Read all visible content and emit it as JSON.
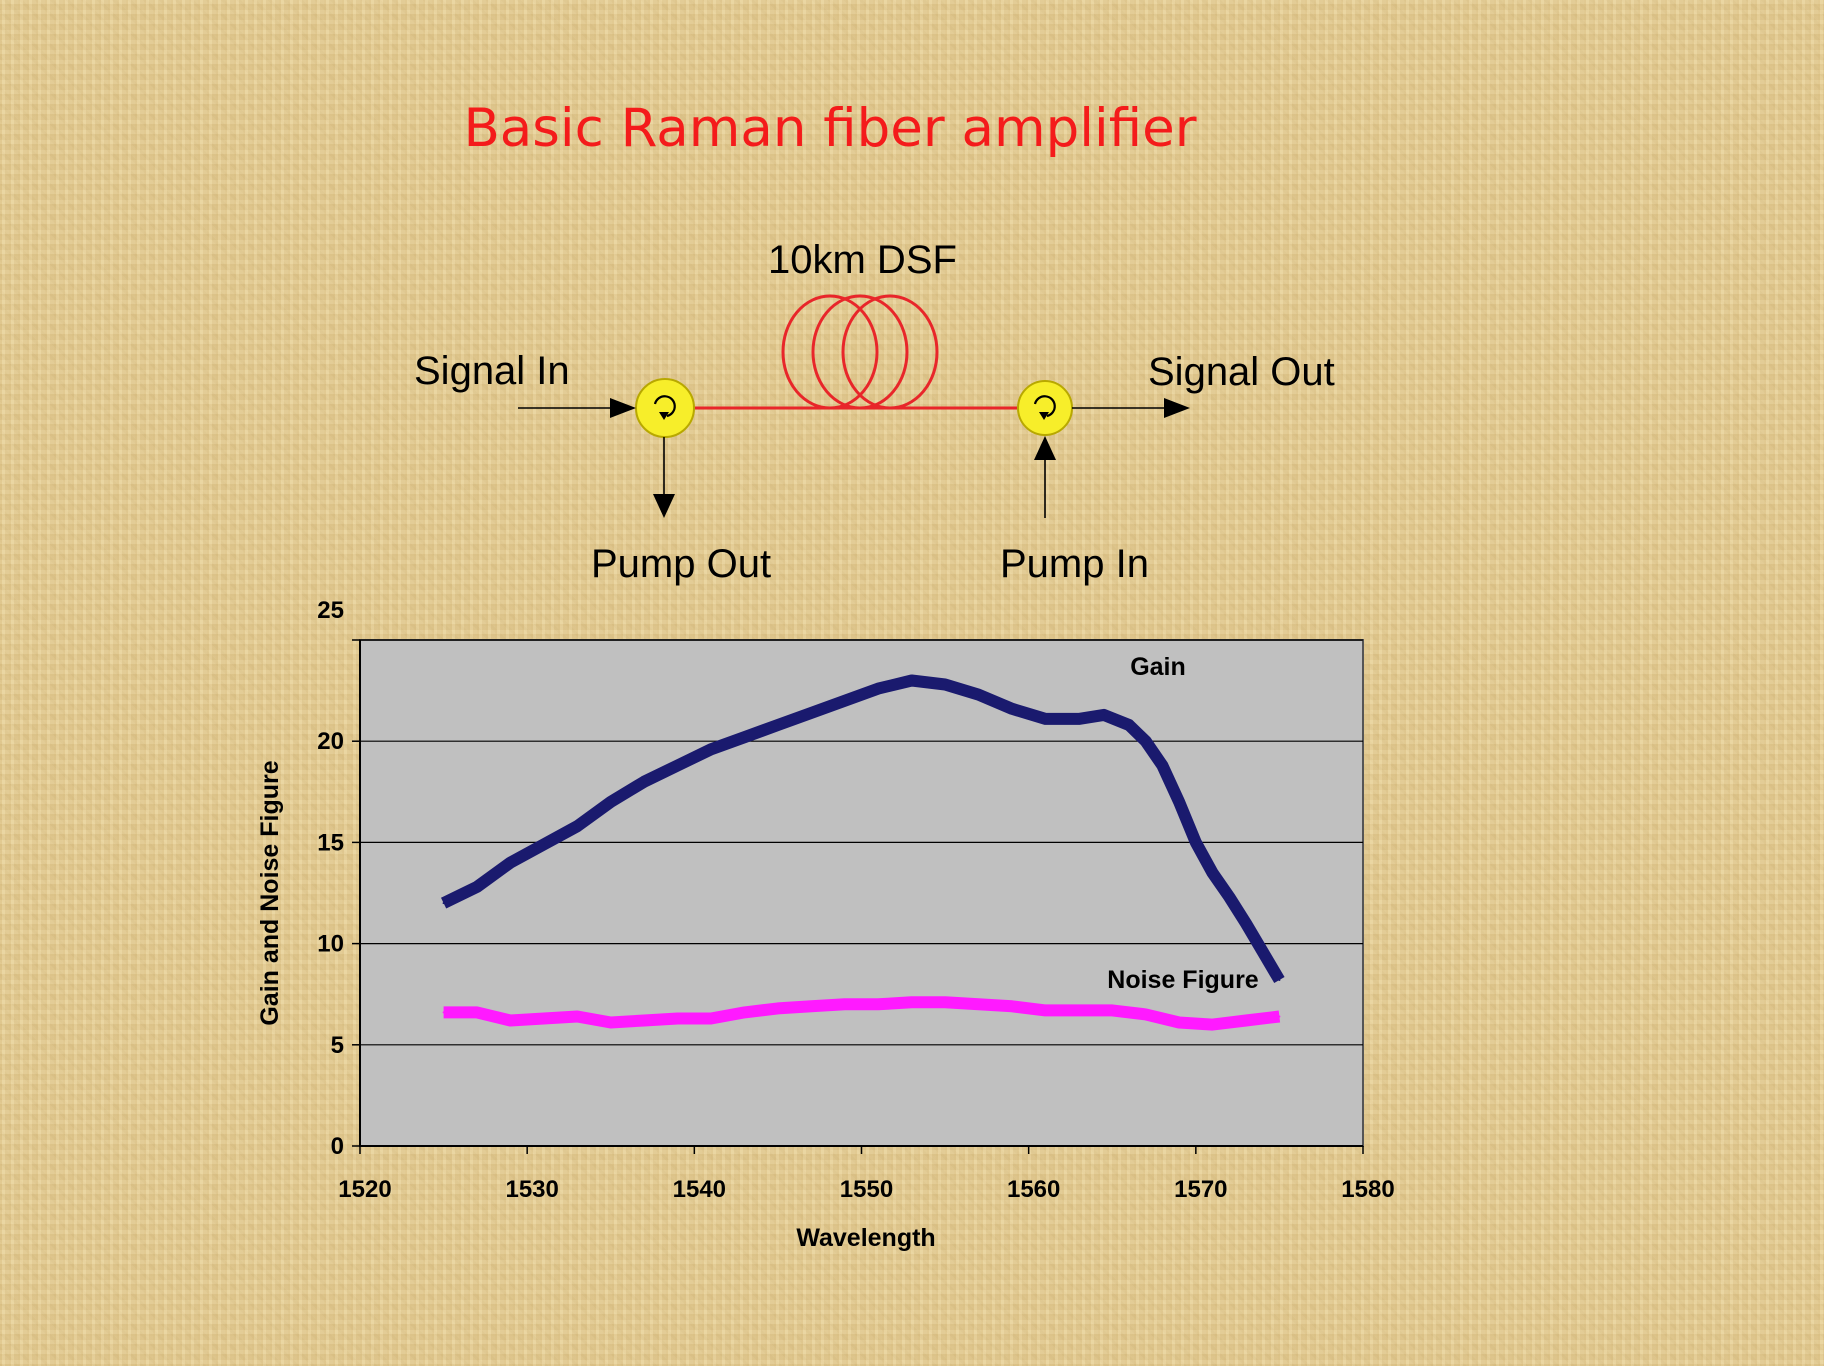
{
  "slide": {
    "title": "Basic Raman fiber amplifier"
  },
  "diagram": {
    "fiber_label": "10km DSF",
    "signal_in": "Signal In",
    "signal_out": "Signal Out",
    "pump_out": "Pump Out",
    "pump_in": "Pump In",
    "colors": {
      "fiber": "#e8262a",
      "circulator": "#f7ee2a",
      "arrow": "#000000"
    }
  },
  "chart_data": {
    "type": "line",
    "xlabel": "Wavelength",
    "ylabel": "Gain and Noise Figure",
    "xlim": [
      1520,
      1580
    ],
    "ylim": [
      0,
      25
    ],
    "xticks": [
      1520,
      1530,
      1540,
      1550,
      1560,
      1570,
      1580
    ],
    "yticks": [
      0,
      5,
      10,
      15,
      20,
      25
    ],
    "grid": "horizontal",
    "plot_background": "#c0c0c0",
    "series": [
      {
        "name": "Gain",
        "color": "#1a1a6e",
        "x": [
          1525,
          1527,
          1529,
          1531,
          1533,
          1535,
          1537,
          1539,
          1541,
          1543,
          1545,
          1547,
          1549,
          1551,
          1553,
          1555,
          1557,
          1559,
          1561,
          1563,
          1564.5,
          1566,
          1567,
          1568,
          1569,
          1570,
          1571,
          1572,
          1573,
          1574,
          1575
        ],
        "y": [
          12.0,
          12.8,
          14.0,
          14.9,
          15.8,
          17.0,
          18.0,
          18.8,
          19.6,
          20.2,
          20.8,
          21.4,
          22.0,
          22.6,
          23.0,
          22.8,
          22.3,
          21.6,
          21.1,
          21.1,
          21.3,
          20.8,
          20.0,
          18.8,
          17.0,
          15.0,
          13.5,
          12.3,
          11.0,
          9.6,
          8.2
        ]
      },
      {
        "name": "Noise Figure",
        "color": "#ff1aff",
        "x": [
          1525,
          1527,
          1529,
          1531,
          1533,
          1535,
          1537,
          1539,
          1541,
          1543,
          1545,
          1547,
          1549,
          1551,
          1553,
          1555,
          1557,
          1559,
          1561,
          1563,
          1565,
          1567,
          1569,
          1571,
          1573,
          1575
        ],
        "y": [
          6.6,
          6.6,
          6.2,
          6.3,
          6.4,
          6.1,
          6.2,
          6.3,
          6.3,
          6.6,
          6.8,
          6.9,
          7.0,
          7.0,
          7.1,
          7.1,
          7.0,
          6.9,
          6.7,
          6.7,
          6.7,
          6.5,
          6.1,
          6.0,
          6.2,
          6.4
        ]
      }
    ]
  }
}
